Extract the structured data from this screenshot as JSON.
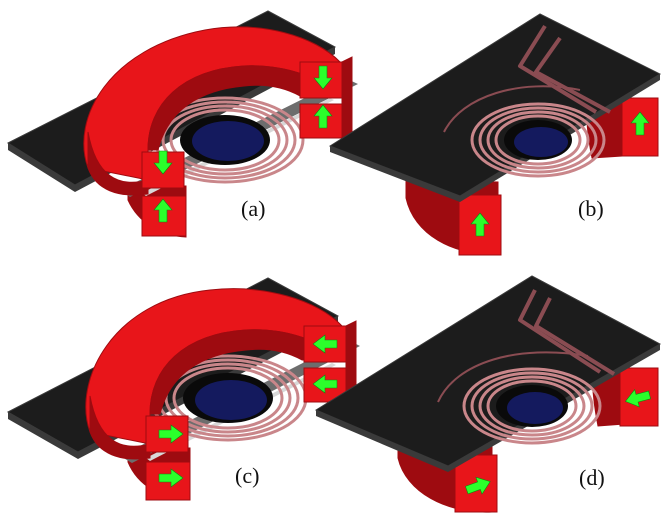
{
  "figure": {
    "panels": [
      {
        "id": "a",
        "label": "(a)",
        "variant": "yoke",
        "magnetization": "vertical"
      },
      {
        "id": "b",
        "label": "(b)",
        "variant": "open",
        "magnetization": "vertical"
      },
      {
        "id": "c",
        "label": "(c)",
        "variant": "yoke",
        "magnetization": "horizontal"
      },
      {
        "id": "d",
        "label": "(d)",
        "variant": "open",
        "magnetization": "horizontal"
      }
    ]
  },
  "colors": {
    "magnet": "#e8151a",
    "magnet_dark": "#9e0b10",
    "magnet_light": "#f23a3a",
    "board": "#1c1c1c",
    "board_edge": "#3a3a3a",
    "coil": "#c9868a",
    "coil_dark": "#8a4c52",
    "core": "#141a5e",
    "core_ring": "#0a0a0a",
    "arrow": "#2bff2b",
    "steel": "#6d6d6d",
    "steel_light": "#d8d8d8"
  }
}
